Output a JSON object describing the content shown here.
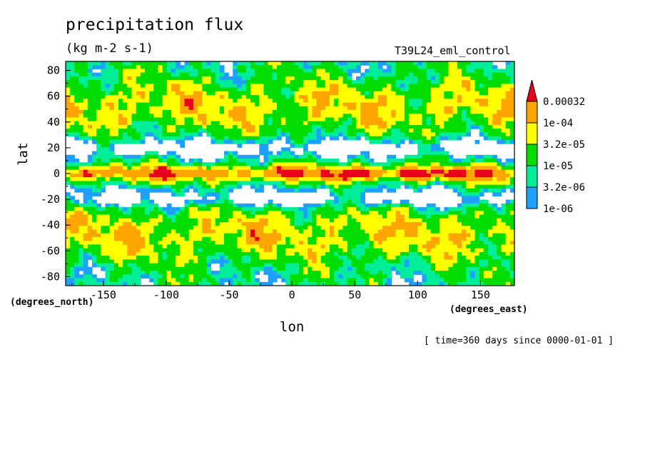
{
  "title": "precipitation flux",
  "units": "(kg m-2 s-1)",
  "run_name": "T39L24_eml_control",
  "timestamp": "[ time=360 days since 0000-01-01 ]",
  "chart_data": {
    "type": "heatmap",
    "xlabel": "lon",
    "ylabel": "lat",
    "x_unit": "(degrees_east)",
    "y_unit": "(degrees_north)",
    "xlim": [
      -180,
      177
    ],
    "ylim": [
      -87,
      87
    ],
    "x_ticks": [
      -150,
      -100,
      -50,
      0,
      50,
      100,
      150
    ],
    "x_tick_labels": [
      "-150",
      "-100",
      "-50",
      "0",
      "50",
      "100",
      "150"
    ],
    "y_ticks": [
      80,
      60,
      40,
      20,
      0,
      -20,
      -40,
      -60,
      -80
    ],
    "y_tick_labels": [
      "80",
      "60",
      "40",
      "20",
      "0",
      "-20",
      "-40",
      "-60",
      "-80"
    ],
    "colorbar": {
      "levels": [
        "0.00032",
        "1e-04",
        "3.2e-05",
        "1e-05",
        "3.2e-06",
        "1e-06"
      ],
      "colors": [
        "#e8001e",
        "#ffa500",
        "#ffff00",
        "#00dd00",
        "#00ee99",
        "#1ea0ff"
      ]
    }
  }
}
